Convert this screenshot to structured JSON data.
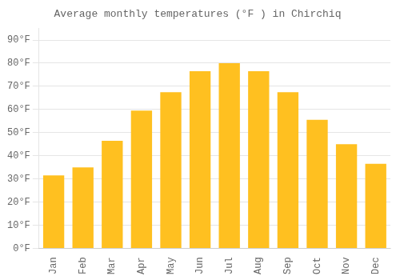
{
  "chart_data": {
    "type": "bar",
    "title": "Average monthly temperatures (°F ) in Chirchiq",
    "categories": [
      "Jan",
      "Feb",
      "Mar",
      "Apr",
      "May",
      "Jun",
      "Jul",
      "Aug",
      "Sep",
      "Oct",
      "Nov",
      "Dec"
    ],
    "values": [
      31.5,
      35,
      46.5,
      59.5,
      67.5,
      76.5,
      80,
      76.5,
      67.5,
      55.5,
      45,
      36.5
    ],
    "color": "#FFC020",
    "ylim": [
      0,
      95
    ],
    "yticks": [
      {
        "value": 0,
        "label": "0°F"
      },
      {
        "value": 10,
        "label": "10°F"
      },
      {
        "value": 20,
        "label": "20°F"
      },
      {
        "value": 30,
        "label": "30°F"
      },
      {
        "value": 40,
        "label": "40°F"
      },
      {
        "value": 50,
        "label": "50°F"
      },
      {
        "value": 60,
        "label": "60°F"
      },
      {
        "value": 70,
        "label": "70°F"
      },
      {
        "value": 80,
        "label": "80°F"
      },
      {
        "value": 90,
        "label": "90°F"
      }
    ],
    "grid": true
  }
}
